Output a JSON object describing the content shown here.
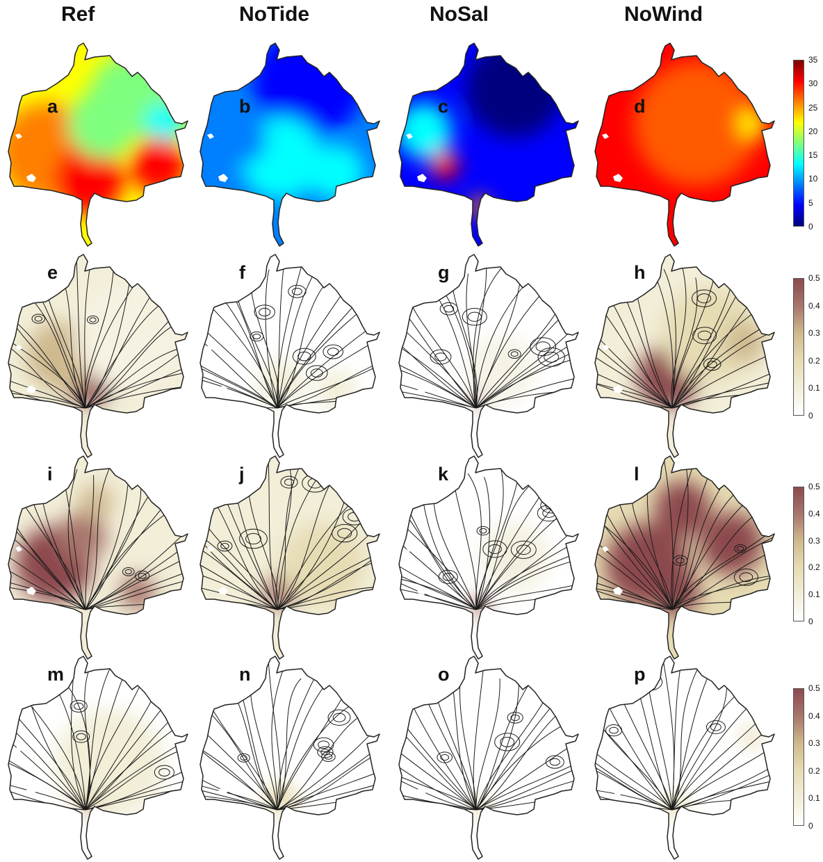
{
  "columns": [
    "Ref",
    "NoTide",
    "NoSal",
    "NoWind"
  ],
  "panel_labels": [
    [
      "a",
      "b",
      "c",
      "d"
    ],
    [
      "e",
      "f",
      "g",
      "h"
    ],
    [
      "i",
      "j",
      "k",
      "l"
    ],
    [
      "m",
      "n",
      "o",
      "p"
    ]
  ],
  "colorbars": [
    {
      "ticks": [
        "35",
        "30",
        "25",
        "20",
        "15",
        "10",
        "5",
        "0"
      ],
      "min": 0,
      "max": 35,
      "colormap": "jet"
    },
    {
      "ticks": [
        "0.5",
        "0.4",
        "0.3",
        "0.2",
        "0.1",
        "0"
      ],
      "min": 0,
      "max": 0.5,
      "colormap": "white-beige-maroon"
    },
    {
      "ticks": [
        "0.5",
        "0.4",
        "0.3",
        "0.2",
        "0.1",
        "0"
      ],
      "min": 0,
      "max": 0.5,
      "colormap": "white-beige-maroon"
    },
    {
      "ticks": [
        "0.5",
        "0.4",
        "0.3",
        "0.2",
        "0.1",
        "0"
      ],
      "min": 0,
      "max": 0.5,
      "colormap": "white-beige-maroon"
    }
  ],
  "colors": {
    "jet": [
      "#00007f",
      "#0000ff",
      "#007fff",
      "#00ffff",
      "#7fff7f",
      "#ffff00",
      "#ff7f00",
      "#ff0000",
      "#7f0000"
    ],
    "speed": [
      "#ffffff",
      "#f2eed8",
      "#e6dcb4",
      "#cfb98f",
      "#a8766c",
      "#8c4a4e"
    ],
    "outline": "#222222"
  }
}
